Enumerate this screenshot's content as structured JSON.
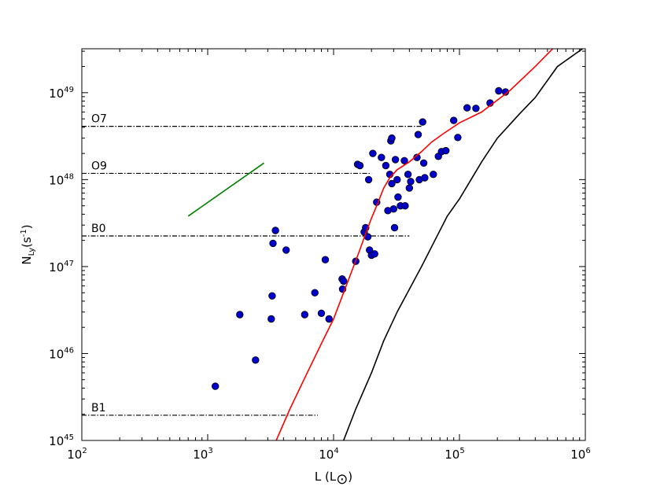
{
  "chart_data": {
    "type": "scatter",
    "xscale": "log",
    "yscale": "log",
    "xlim": [
      100,
      1000000
    ],
    "ylim": [
      1e+45,
      3.2e+49
    ],
    "xticks": [
      {
        "base": "10",
        "exp": "2",
        "value": 100
      },
      {
        "base": "10",
        "exp": "3",
        "value": 1000
      },
      {
        "base": "10",
        "exp": "4",
        "value": 10000
      },
      {
        "base": "10",
        "exp": "5",
        "value": 100000
      },
      {
        "base": "10",
        "exp": "6",
        "value": 1000000
      }
    ],
    "yticks": [
      {
        "base": "10",
        "exp": "45",
        "value": 1e+45
      },
      {
        "base": "10",
        "exp": "46",
        "value": 1e+46
      },
      {
        "base": "10",
        "exp": "47",
        "value": 1e+47
      },
      {
        "base": "10",
        "exp": "48",
        "value": 1e+48
      },
      {
        "base": "10",
        "exp": "49",
        "value": 1e+49
      }
    ],
    "xlabel": {
      "main": "L (L",
      "sub": "⊙",
      "close": ")"
    },
    "ylabel": {
      "main": "N",
      "sub": "Ly",
      "rest": "(s",
      "sup": "-1",
      "close": ")"
    },
    "grid": false,
    "reference_lines": [
      {
        "label": "O7",
        "y": 4.1e+48,
        "x_end": 50000
      },
      {
        "label": "O9",
        "y": 1.18e+48,
        "x_end": 20000
      },
      {
        "label": "B0",
        "y": 2.25e+47,
        "x_end": 40000
      },
      {
        "label": "B1",
        "y": 1.95e+45,
        "x_end": 7500
      }
    ],
    "series": [
      {
        "kind": "scatter",
        "color": "#0000cc",
        "edge": "#000000",
        "points": [
          [
            1150,
            4.2e+45
          ],
          [
            1800,
            2.8e+46
          ],
          [
            2400,
            8.4e+45
          ],
          [
            3200,
            2.5e+46
          ],
          [
            3250,
            4.6e+46
          ],
          [
            3300,
            1.85e+47
          ],
          [
            3450,
            2.6e+47
          ],
          [
            4200,
            1.55e+47
          ],
          [
            5900,
            2.8e+46
          ],
          [
            7100,
            5e+46
          ],
          [
            8000,
            2.9e+46
          ],
          [
            8600,
            1.2e+47
          ],
          [
            9200,
            2.5e+46
          ],
          [
            11700,
            7.2e+46
          ],
          [
            11800,
            5.5e+46
          ],
          [
            12000,
            6.8e+46
          ],
          [
            15000,
            1.15e+47
          ],
          [
            15500,
            1.5e+48
          ],
          [
            16200,
            1.45e+48
          ],
          [
            17500,
            2.5e+47
          ],
          [
            18000,
            2.8e+47
          ],
          [
            18700,
            2.2e+47
          ],
          [
            19000,
            1e+48
          ],
          [
            19300,
            1.55e+47
          ],
          [
            20000,
            1.35e+47
          ],
          [
            20500,
            2e+48
          ],
          [
            21200,
            1.4e+47
          ],
          [
            22000,
            5.5e+47
          ],
          [
            24000,
            1.8e+48
          ],
          [
            26000,
            1.45e+48
          ],
          [
            27000,
            4.4e+47
          ],
          [
            28000,
            1.15e+48
          ],
          [
            28500,
            2.8e+48
          ],
          [
            29000,
            3e+48
          ],
          [
            29000,
            9e+47
          ],
          [
            30000,
            4.6e+47
          ],
          [
            30500,
            2.8e+47
          ],
          [
            31000,
            1.7e+48
          ],
          [
            32000,
            1e+48
          ],
          [
            32500,
            6.3e+47
          ],
          [
            34000,
            5e+47
          ],
          [
            36500,
            1.65e+48
          ],
          [
            37000,
            5e+47
          ],
          [
            39000,
            1.15e+48
          ],
          [
            40000,
            8e+47
          ],
          [
            41000,
            9.5e+47
          ],
          [
            46000,
            1.8e+48
          ],
          [
            47000,
            3.3e+48
          ],
          [
            48000,
            1e+48
          ],
          [
            51000,
            4.6e+48
          ],
          [
            52000,
            1.55e+48
          ],
          [
            53000,
            1.05e+48
          ],
          [
            62000,
            1.15e+48
          ],
          [
            68000,
            1.85e+48
          ],
          [
            72000,
            2.1e+48
          ],
          [
            78000,
            2.15e+48
          ],
          [
            90000,
            4.8e+48
          ],
          [
            97000,
            3.05e+48
          ],
          [
            115000,
            6.7e+48
          ],
          [
            135000,
            6.6e+48
          ],
          [
            175000,
            7.6e+48
          ],
          [
            205000,
            1.05e+49
          ],
          [
            232000,
            1.02e+49
          ]
        ]
      },
      {
        "kind": "line",
        "color": "#ff0000",
        "points": [
          [
            3500,
            1e+45
          ],
          [
            4500,
            2.3e+45
          ],
          [
            6000,
            5.5e+45
          ],
          [
            8000,
            1.3e+46
          ],
          [
            10000,
            2.5e+46
          ],
          [
            12000,
            5e+46
          ],
          [
            14000,
            9e+46
          ],
          [
            16000,
            1.5e+47
          ],
          [
            18000,
            2.4e+47
          ],
          [
            20000,
            3.6e+47
          ],
          [
            22500,
            5.4e+47
          ],
          [
            25000,
            8e+47
          ],
          [
            28000,
            1.05e+48
          ],
          [
            32000,
            1.3e+48
          ],
          [
            40000,
            1.6e+48
          ],
          [
            50000,
            2.1e+48
          ],
          [
            60000,
            2.7e+48
          ],
          [
            75000,
            3.4e+48
          ],
          [
            100000,
            4.5e+48
          ],
          [
            150000,
            6e+48
          ],
          [
            250000,
            1.05e+49
          ],
          [
            400000,
            2e+49
          ],
          [
            550000,
            3.2e+49
          ]
        ]
      },
      {
        "kind": "line",
        "color": "#000000",
        "points": [
          [
            12000,
            1e+45
          ],
          [
            15000,
            2.3e+45
          ],
          [
            20000,
            6e+45
          ],
          [
            25000,
            1.4e+46
          ],
          [
            32000,
            3e+46
          ],
          [
            50000,
            1e+47
          ],
          [
            80000,
            3.8e+47
          ],
          [
            100000,
            6e+47
          ],
          [
            150000,
            1.6e+48
          ],
          [
            200000,
            3e+48
          ],
          [
            300000,
            5.7e+48
          ],
          [
            400000,
            8.8e+48
          ],
          [
            600000,
            2e+49
          ],
          [
            950000,
            3.2e+49
          ]
        ]
      },
      {
        "kind": "line",
        "color": "#008000",
        "points": [
          [
            700,
            3.8e+47
          ],
          [
            2800,
            1.55e+48
          ]
        ]
      }
    ]
  }
}
